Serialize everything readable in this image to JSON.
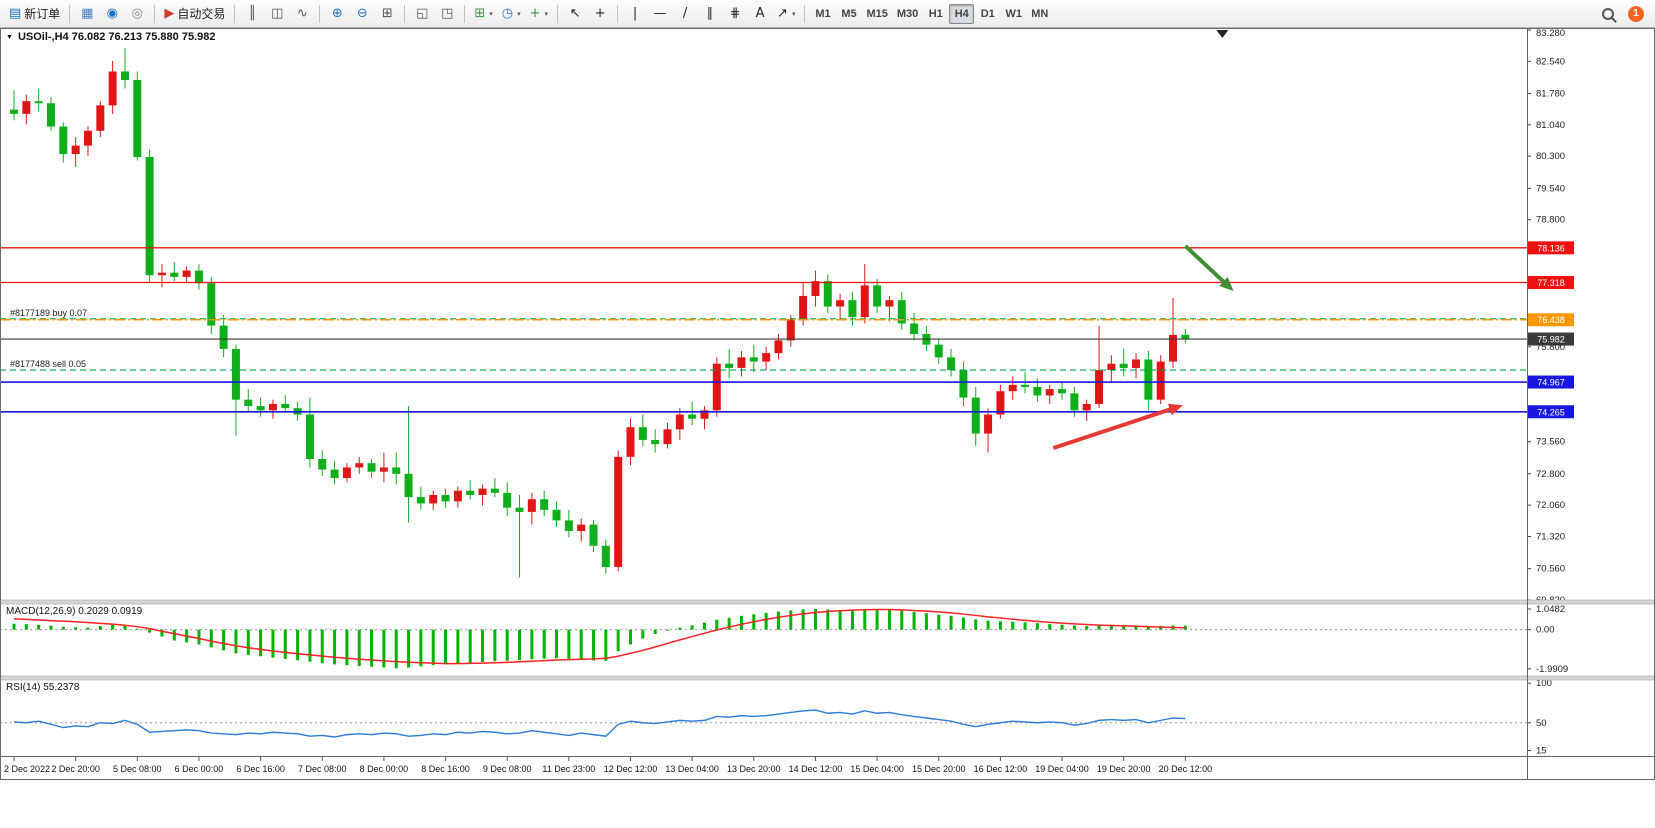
{
  "toolbar": {
    "left_items": [
      {
        "name": "new-order",
        "glyph": "▤",
        "glyph_color": "#1a6fc9",
        "label": "新订单"
      },
      {
        "sep": true
      },
      {
        "name": "chart-window",
        "glyph": "▦",
        "glyph_color": "#4a7dbf"
      },
      {
        "name": "profile",
        "glyph": "◉",
        "glyph_color": "#1a6fc9"
      },
      {
        "name": "community",
        "glyph": "◎",
        "glyph_color": "#888888"
      },
      {
        "sep": true
      },
      {
        "name": "auto-trading",
        "glyph": "▶",
        "glyph_color": "#cf3a2b",
        "label": "自动交易"
      },
      {
        "sep": true
      },
      {
        "name": "bar-chart",
        "glyph": "║",
        "glyph_color": "#555555"
      },
      {
        "name": "candlestick-chart",
        "glyph": "◫",
        "glyph_color": "#555555"
      },
      {
        "name": "line-chart",
        "glyph": "∿",
        "glyph_color": "#555555"
      },
      {
        "sep": true
      },
      {
        "name": "zoom-in",
        "glyph": "⊕",
        "glyph_color": "#2b6fb8"
      },
      {
        "name": "zoom-out",
        "glyph": "⊖",
        "glyph_color": "#2b6fb8"
      },
      {
        "name": "auto-arrange",
        "glyph": "⊞",
        "glyph_color": "#555555"
      },
      {
        "sep": true
      },
      {
        "name": "tile-windows",
        "glyph": "◱",
        "glyph_color": "#555555"
      },
      {
        "name": "cascade-windows",
        "glyph": "◳",
        "glyph_color": "#555555"
      },
      {
        "sep": true
      },
      {
        "name": "new-chart",
        "glyph": "⊞",
        "glyph_color": "#3c8d40",
        "caret": true
      },
      {
        "name": "period",
        "glyph": "◷",
        "glyph_color": "#2b6fb8",
        "caret": true
      },
      {
        "name": "indicators",
        "glyph": "+",
        "glyph_color": "#3c8d40",
        "caret": true
      },
      {
        "sep": true
      },
      {
        "name": "cursor",
        "glyph": "↖",
        "glyph_color": "#222222"
      },
      {
        "name": "crosshair",
        "glyph": "+",
        "glyph_color": "#222222"
      },
      {
        "sep": true
      },
      {
        "name": "vertical-line",
        "glyph": "|",
        "glyph_color": "#222222"
      },
      {
        "name": "horizontal-line",
        "glyph": "—",
        "glyph_color": "#222222"
      },
      {
        "name": "trendline",
        "glyph": "/",
        "glyph_color": "#222222"
      },
      {
        "name": "equidistant-channel",
        "glyph": "∥",
        "glyph_color": "#222222"
      },
      {
        "name": "fibonacci",
        "glyph": "⋕",
        "glyph_color": "#222222"
      },
      {
        "name": "text",
        "glyph": "A",
        "glyph_color": "#222222"
      },
      {
        "name": "arrows",
        "glyph": "↗",
        "glyph_color": "#222222",
        "caret": true
      },
      {
        "sep": true
      }
    ],
    "timeframes": [
      "M1",
      "M5",
      "M15",
      "M30",
      "H1",
      "H4",
      "D1",
      "W1",
      "MN"
    ],
    "active_timeframe": "H4",
    "right_items": {
      "search": {
        "name": "search"
      },
      "notifications": {
        "name": "notifications",
        "badge": "1",
        "color": "#f26522"
      }
    }
  },
  "chart": {
    "title": "USOil-,H4 76.082 76.213 75.880 75.982",
    "symbol": "USOil-",
    "period": "H4",
    "ohlc": {
      "open": "76.082",
      "high": "76.213",
      "low": "75.880",
      "close": "75.982"
    }
  },
  "indicators": {
    "macd_label": "MACD(12,26,9) 0.2029 0.0919",
    "rsi_label": "RSI(14) 55.2378"
  },
  "chart_data": {
    "type": "candlestick",
    "symbol": "USOil-",
    "period": "H4",
    "up_color": "#e01616",
    "down_color": "#0faf1c",
    "price_axis": {
      "min": 69.82,
      "max": 83.28,
      "ticks": [
        83.28,
        82.54,
        81.78,
        81.04,
        80.3,
        79.54,
        78.8,
        75.8,
        73.56,
        72.8,
        72.06,
        71.32,
        70.56,
        69.82
      ]
    },
    "time_labels": [
      "2 Dec 2022",
      "2 Dec 20:00",
      "5 Dec 08:00",
      "6 Dec 00:00",
      "6 Dec 16:00",
      "7 Dec 08:00",
      "8 Dec 00:00",
      "8 Dec 16:00",
      "9 Dec 08:00",
      "11 Dec 23:00",
      "12 Dec 12:00",
      "13 Dec 04:00",
      "13 Dec 20:00",
      "14 Dec 12:00",
      "15 Dec 04:00",
      "15 Dec 20:00",
      "16 Dec 12:00",
      "19 Dec 04:00",
      "19 Dec 20:00",
      "20 Dec 12:00"
    ],
    "candles": [
      [
        81.4,
        81.85,
        81.15,
        81.3
      ],
      [
        81.3,
        81.75,
        81.05,
        81.6
      ],
      [
        81.6,
        81.9,
        81.35,
        81.55
      ],
      [
        81.55,
        81.7,
        80.9,
        81.0
      ],
      [
        81.0,
        81.1,
        80.15,
        80.35
      ],
      [
        80.35,
        80.75,
        80.05,
        80.55
      ],
      [
        80.55,
        81.0,
        80.3,
        80.9
      ],
      [
        80.9,
        81.6,
        80.75,
        81.5
      ],
      [
        81.5,
        82.55,
        81.3,
        82.3
      ],
      [
        82.3,
        82.85,
        81.9,
        82.1
      ],
      [
        82.1,
        82.3,
        80.2,
        80.28
      ],
      [
        80.28,
        80.45,
        77.3,
        77.49
      ],
      [
        77.49,
        77.75,
        77.2,
        77.55
      ],
      [
        77.55,
        77.8,
        77.35,
        77.45
      ],
      [
        77.45,
        77.7,
        77.3,
        77.6
      ],
      [
        77.6,
        77.75,
        77.15,
        77.3
      ],
      [
        77.3,
        77.45,
        76.1,
        76.3
      ],
      [
        76.3,
        76.55,
        75.55,
        75.75
      ],
      [
        75.75,
        75.85,
        73.7,
        74.55
      ],
      [
        74.55,
        74.8,
        74.25,
        74.4
      ],
      [
        74.4,
        74.6,
        74.15,
        74.3
      ],
      [
        74.3,
        74.55,
        74.1,
        74.45
      ],
      [
        74.45,
        74.65,
        74.25,
        74.35
      ],
      [
        74.35,
        74.5,
        74.05,
        74.2
      ],
      [
        74.2,
        74.6,
        72.95,
        73.15
      ],
      [
        73.15,
        73.35,
        72.75,
        72.9
      ],
      [
        72.9,
        73.1,
        72.55,
        72.7
      ],
      [
        72.7,
        73.05,
        72.6,
        72.95
      ],
      [
        72.95,
        73.2,
        72.8,
        73.05
      ],
      [
        73.05,
        73.15,
        72.7,
        72.85
      ],
      [
        72.85,
        73.3,
        72.6,
        72.95
      ],
      [
        72.95,
        73.3,
        72.55,
        72.8
      ],
      [
        72.8,
        74.4,
        71.65,
        72.25
      ],
      [
        72.25,
        72.5,
        71.95,
        72.1
      ],
      [
        72.1,
        72.4,
        71.95,
        72.3
      ],
      [
        72.3,
        72.45,
        72.0,
        72.15
      ],
      [
        72.15,
        72.5,
        72.0,
        72.4
      ],
      [
        72.4,
        72.65,
        72.2,
        72.3
      ],
      [
        72.3,
        72.55,
        72.05,
        72.45
      ],
      [
        72.45,
        72.7,
        72.25,
        72.35
      ],
      [
        72.35,
        72.6,
        71.8,
        72.0
      ],
      [
        72.0,
        72.3,
        70.35,
        71.9
      ],
      [
        71.9,
        72.35,
        71.6,
        72.2
      ],
      [
        72.2,
        72.4,
        71.8,
        71.95
      ],
      [
        71.95,
        72.15,
        71.55,
        71.7
      ],
      [
        71.7,
        71.95,
        71.3,
        71.45
      ],
      [
        71.45,
        71.75,
        71.2,
        71.6
      ],
      [
        71.6,
        71.7,
        70.95,
        71.1
      ],
      [
        71.1,
        71.25,
        70.45,
        70.6
      ],
      [
        70.6,
        73.35,
        70.5,
        73.2
      ],
      [
        73.2,
        74.1,
        73.0,
        73.9
      ],
      [
        73.9,
        74.2,
        73.45,
        73.6
      ],
      [
        73.6,
        73.85,
        73.3,
        73.5
      ],
      [
        73.5,
        74.0,
        73.4,
        73.85
      ],
      [
        73.85,
        74.35,
        73.6,
        74.2
      ],
      [
        74.2,
        74.5,
        73.95,
        74.1
      ],
      [
        74.1,
        74.4,
        73.85,
        74.3
      ],
      [
        74.3,
        75.55,
        74.15,
        75.4
      ],
      [
        75.4,
        75.75,
        75.05,
        75.3
      ],
      [
        75.3,
        75.7,
        75.1,
        75.55
      ],
      [
        75.55,
        75.85,
        75.2,
        75.45
      ],
      [
        75.45,
        75.8,
        75.25,
        75.65
      ],
      [
        75.65,
        76.1,
        75.5,
        75.95
      ],
      [
        75.95,
        76.55,
        75.8,
        76.45
      ],
      [
        76.45,
        77.3,
        76.3,
        77.0
      ],
      [
        77.0,
        77.6,
        76.75,
        77.35
      ],
      [
        77.35,
        77.5,
        76.6,
        76.75
      ],
      [
        76.75,
        77.05,
        76.45,
        76.9
      ],
      [
        76.9,
        77.1,
        76.3,
        76.5
      ],
      [
        76.5,
        77.75,
        76.35,
        77.25
      ],
      [
        77.25,
        77.4,
        76.6,
        76.75
      ],
      [
        76.75,
        77.0,
        76.4,
        76.9
      ],
      [
        76.9,
        77.1,
        76.2,
        76.35
      ],
      [
        76.35,
        76.6,
        75.95,
        76.1
      ],
      [
        76.1,
        76.3,
        75.7,
        75.85
      ],
      [
        75.85,
        76.0,
        75.4,
        75.55
      ],
      [
        75.55,
        75.75,
        75.1,
        75.25
      ],
      [
        75.25,
        75.45,
        74.4,
        74.6
      ],
      [
        74.6,
        74.85,
        73.45,
        73.75
      ],
      [
        73.75,
        74.35,
        73.3,
        74.2
      ],
      [
        74.2,
        74.9,
        74.1,
        74.75
      ],
      [
        74.75,
        75.1,
        74.55,
        74.9
      ],
      [
        74.9,
        75.2,
        74.7,
        74.85
      ],
      [
        74.85,
        75.05,
        74.5,
        74.65
      ],
      [
        74.65,
        74.9,
        74.45,
        74.8
      ],
      [
        74.8,
        74.95,
        74.55,
        74.7
      ],
      [
        74.7,
        74.85,
        74.15,
        74.3
      ],
      [
        74.3,
        74.55,
        74.05,
        74.45
      ],
      [
        74.45,
        76.3,
        74.35,
        75.25
      ],
      [
        75.25,
        75.6,
        74.95,
        75.4
      ],
      [
        75.4,
        75.75,
        75.1,
        75.3
      ],
      [
        75.3,
        75.65,
        75.05,
        75.5
      ],
      [
        75.5,
        75.7,
        74.3,
        74.55
      ],
      [
        74.55,
        75.6,
        74.45,
        75.45
      ],
      [
        75.45,
        76.95,
        75.3,
        76.08
      ],
      [
        76.082,
        76.213,
        75.88,
        75.982
      ]
    ],
    "horizontal_lines": [
      {
        "price": 76.46,
        "color": "#00a651",
        "style": "dash",
        "width": 1.2,
        "badge": false,
        "label": "#8177189 buy 0.07",
        "name": "buy-order-line"
      },
      {
        "price": 75.25,
        "color": "#00a651",
        "style": "dash",
        "width": 1.2,
        "badge": false,
        "label": "#8177488 sell 0.05",
        "name": "sell-order-line"
      },
      {
        "price": 78.136,
        "color": "#ee1111",
        "style": "solid",
        "width": 1.3,
        "badge": true,
        "name": "resistance-line-1"
      },
      {
        "price": 77.318,
        "color": "#ee1111",
        "style": "solid",
        "width": 1.3,
        "badge": true,
        "name": "resistance-line-2"
      },
      {
        "price": 76.438,
        "color": "#ff9800",
        "style": "dashdot",
        "width": 1.6,
        "badge": true,
        "name": "orange-level-line"
      },
      {
        "price": 75.982,
        "color": "#3a3a3a",
        "style": "solid",
        "width": 1.1,
        "badge": true,
        "name": "current-price-line"
      },
      {
        "price": 74.967,
        "color": "#1717e0",
        "style": "solid",
        "width": 1.6,
        "badge": true,
        "name": "support-line-1"
      },
      {
        "price": 74.265,
        "color": "#1717e0",
        "style": "solid",
        "width": 1.6,
        "badge": true,
        "name": "support-line-2"
      }
    ],
    "macd": {
      "label": "MACD(12,26,9) 0.2029 0.0919",
      "hist_color": "#00b300",
      "signal_color": "#ff2222",
      "range": [
        -2.35,
        1.3
      ],
      "axis_ticks": [
        {
          "v": 1.0482,
          "t": "1.0482"
        },
        {
          "v": 0,
          "t": "0.00"
        },
        {
          "v": -1.9909,
          "t": "-1.9909"
        }
      ],
      "histogram": [
        0.3,
        0.28,
        0.25,
        0.2,
        0.15,
        0.12,
        0.1,
        0.18,
        0.25,
        0.2,
        0.05,
        -0.15,
        -0.35,
        -0.55,
        -0.65,
        -0.75,
        -0.9,
        -1.05,
        -1.2,
        -1.28,
        -1.35,
        -1.42,
        -1.48,
        -1.55,
        -1.62,
        -1.7,
        -1.76,
        -1.8,
        -1.85,
        -1.88,
        -1.92,
        -1.96,
        -1.92,
        -1.86,
        -1.8,
        -1.76,
        -1.73,
        -1.68,
        -1.64,
        -1.6,
        -1.58,
        -1.55,
        -1.5,
        -1.47,
        -1.45,
        -1.48,
        -1.52,
        -1.56,
        -1.58,
        -1.1,
        -0.75,
        -0.45,
        -0.22,
        -0.05,
        0.1,
        0.22,
        0.35,
        0.5,
        0.6,
        0.7,
        0.78,
        0.85,
        0.92,
        0.98,
        1.03,
        1.05,
        1.02,
        0.99,
        1.01,
        1.05,
        1.03,
        1.0,
        0.96,
        0.9,
        0.83,
        0.76,
        0.7,
        0.61,
        0.52,
        0.46,
        0.42,
        0.4,
        0.37,
        0.33,
        0.28,
        0.25,
        0.21,
        0.18,
        0.22,
        0.25,
        0.24,
        0.22,
        0.18,
        0.19,
        0.21,
        0.2029
      ],
      "signal": [
        0.55,
        0.52,
        0.49,
        0.46,
        0.43,
        0.4,
        0.36,
        0.32,
        0.28,
        0.22,
        0.15,
        0.05,
        -0.08,
        -0.2,
        -0.33,
        -0.45,
        -0.58,
        -0.7,
        -0.82,
        -0.92,
        -1.0,
        -1.08,
        -1.15,
        -1.22,
        -1.28,
        -1.34,
        -1.4,
        -1.45,
        -1.5,
        -1.54,
        -1.58,
        -1.62,
        -1.65,
        -1.68,
        -1.7,
        -1.72,
        -1.72,
        -1.71,
        -1.7,
        -1.68,
        -1.66,
        -1.63,
        -1.6,
        -1.57,
        -1.54,
        -1.52,
        -1.5,
        -1.48,
        -1.45,
        -1.35,
        -1.2,
        -1.05,
        -0.88,
        -0.7,
        -0.52,
        -0.35,
        -0.18,
        -0.02,
        0.13,
        0.27,
        0.4,
        0.52,
        0.63,
        0.72,
        0.8,
        0.87,
        0.92,
        0.96,
        0.99,
        1.01,
        1.02,
        1.02,
        1.0,
        0.97,
        0.94,
        0.9,
        0.85,
        0.79,
        0.72,
        0.65,
        0.59,
        0.53,
        0.47,
        0.42,
        0.37,
        0.33,
        0.29,
        0.26,
        0.23,
        0.21,
        0.19,
        0.17,
        0.15,
        0.13,
        0.11,
        0.0919
      ]
    },
    "rsi": {
      "label": "RSI(14) 55.2378",
      "color": "#2c7cd6",
      "range": [
        8,
        104
      ],
      "level": 50,
      "axis_ticks": [
        {
          "v": 100,
          "t": "100"
        },
        {
          "v": 50,
          "t": "50"
        },
        {
          "v": 15,
          "t": "15"
        }
      ],
      "values": [
        51,
        50,
        52,
        48,
        44,
        46,
        45,
        50,
        49,
        53,
        48,
        38,
        39,
        40,
        41,
        40,
        37,
        36,
        35,
        37,
        36,
        38,
        37,
        36,
        33,
        34,
        32,
        35,
        36,
        35,
        37,
        36,
        33,
        34,
        36,
        35,
        38,
        37,
        39,
        38,
        36,
        37,
        40,
        38,
        36,
        34,
        37,
        35,
        33,
        48,
        52,
        50,
        49,
        51,
        53,
        52,
        53,
        58,
        57,
        59,
        58,
        59,
        61,
        63,
        65,
        66,
        62,
        63,
        61,
        65,
        62,
        63,
        60,
        58,
        56,
        54,
        52,
        48,
        45,
        48,
        50,
        52,
        51,
        50,
        51,
        50,
        47,
        49,
        53,
        54,
        53,
        54,
        50,
        53,
        56,
        55.24
      ]
    },
    "annotations": [
      {
        "type": "arrow",
        "name": "green-arrow",
        "color": "#3f8f34",
        "from": {
          "index": 95.0,
          "price": 78.18
        },
        "to": {
          "index": 98.9,
          "price": 77.12
        }
      },
      {
        "type": "arrow",
        "name": "red-arrow",
        "color": "#e53935",
        "from": {
          "index": 84.3,
          "price": 73.41
        },
        "to": {
          "index": 94.8,
          "price": 74.42
        }
      },
      {
        "type": "shift-marker",
        "index": 98
      }
    ]
  }
}
